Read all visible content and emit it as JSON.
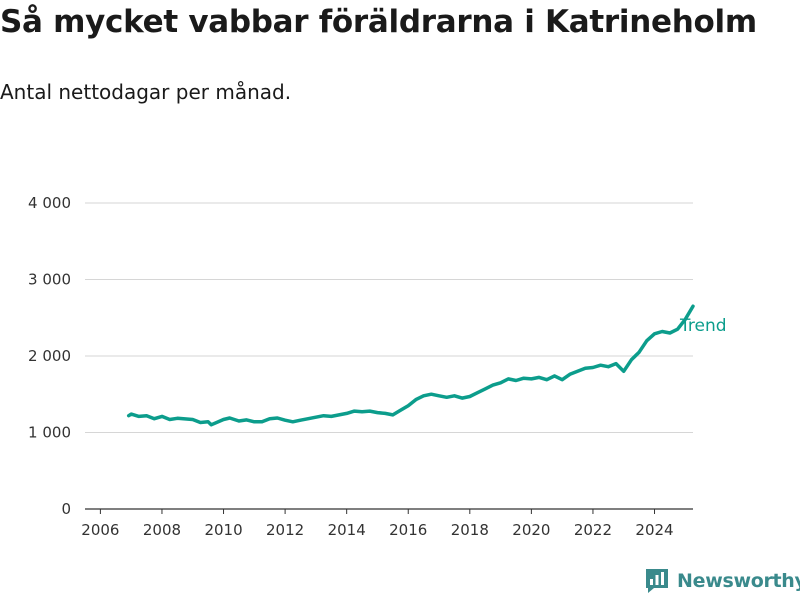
{
  "title": "Så mycket vabbar föräldrarna i Katrineholm",
  "subtitle": "Antal nettodagar per månad.",
  "brand": "Newsworthy",
  "colors": {
    "trend": "#0c9d8c",
    "monthly": "#fdc04c",
    "grid": "#d6d6d6",
    "axis": "#333333",
    "brand": "#3a8a8c"
  },
  "chart_data": {
    "type": "line",
    "x_ticks": [
      "2006",
      "2008",
      "2010",
      "2012",
      "2014",
      "2016",
      "2018",
      "2020",
      "2022",
      "2024"
    ],
    "y_ticks": [
      {
        "value": 0,
        "label": "0"
      },
      {
        "value": 1000,
        "label": "1 000"
      },
      {
        "value": 2000,
        "label": "2 000"
      },
      {
        "value": 3000,
        "label": "3 000"
      },
      {
        "value": 4000,
        "label": "4 000"
      }
    ],
    "xlim": [
      2005.5,
      2025.25
    ],
    "ylim": [
      0,
      4300
    ],
    "grid": "horizontal",
    "legend": "end of lines",
    "series": [
      {
        "name": "Trend",
        "color": "#0c9d8c",
        "points": [
          [
            2006.92,
            1220
          ],
          [
            2007.0,
            1240
          ],
          [
            2007.25,
            1210
          ],
          [
            2007.5,
            1220
          ],
          [
            2007.75,
            1180
          ],
          [
            2008.0,
            1210
          ],
          [
            2008.25,
            1170
          ],
          [
            2008.5,
            1185
          ],
          [
            2009.0,
            1170
          ],
          [
            2009.25,
            1130
          ],
          [
            2009.5,
            1140
          ],
          [
            2009.6,
            1100
          ],
          [
            2010.0,
            1170
          ],
          [
            2010.2,
            1190
          ],
          [
            2010.5,
            1150
          ],
          [
            2010.75,
            1165
          ],
          [
            2011.0,
            1140
          ],
          [
            2011.25,
            1140
          ],
          [
            2011.5,
            1180
          ],
          [
            2011.75,
            1190
          ],
          [
            2012.0,
            1160
          ],
          [
            2012.25,
            1140
          ],
          [
            2012.5,
            1160
          ],
          [
            2012.75,
            1180
          ],
          [
            2013.0,
            1200
          ],
          [
            2013.25,
            1220
          ],
          [
            2013.5,
            1210
          ],
          [
            2013.75,
            1230
          ],
          [
            2014.0,
            1250
          ],
          [
            2014.25,
            1280
          ],
          [
            2014.5,
            1270
          ],
          [
            2014.75,
            1280
          ],
          [
            2015.0,
            1260
          ],
          [
            2015.25,
            1250
          ],
          [
            2015.5,
            1230
          ],
          [
            2015.75,
            1290
          ],
          [
            2016.0,
            1350
          ],
          [
            2016.25,
            1430
          ],
          [
            2016.5,
            1480
          ],
          [
            2016.75,
            1500
          ],
          [
            2017.0,
            1480
          ],
          [
            2017.25,
            1460
          ],
          [
            2017.5,
            1480
          ],
          [
            2017.75,
            1450
          ],
          [
            2018.0,
            1470
          ],
          [
            2018.25,
            1520
          ],
          [
            2018.5,
            1570
          ],
          [
            2018.75,
            1620
          ],
          [
            2019.0,
            1650
          ],
          [
            2019.25,
            1700
          ],
          [
            2019.5,
            1680
          ],
          [
            2019.75,
            1710
          ],
          [
            2020.0,
            1700
          ],
          [
            2020.25,
            1720
          ],
          [
            2020.5,
            1690
          ],
          [
            2020.75,
            1740
          ],
          [
            2021.0,
            1690
          ],
          [
            2021.25,
            1760
          ],
          [
            2021.5,
            1800
          ],
          [
            2021.75,
            1840
          ],
          [
            2022.0,
            1850
          ],
          [
            2022.25,
            1880
          ],
          [
            2022.5,
            1860
          ],
          [
            2022.75,
            1900
          ],
          [
            2023.0,
            1800
          ],
          [
            2023.25,
            1950
          ],
          [
            2023.5,
            2050
          ],
          [
            2023.75,
            2200
          ],
          [
            2024.0,
            2290
          ],
          [
            2024.25,
            2320
          ],
          [
            2024.5,
            2300
          ],
          [
            2024.75,
            2350
          ],
          [
            2025.0,
            2480
          ],
          [
            2025.25,
            2650
          ]
        ]
      }
    ]
  }
}
